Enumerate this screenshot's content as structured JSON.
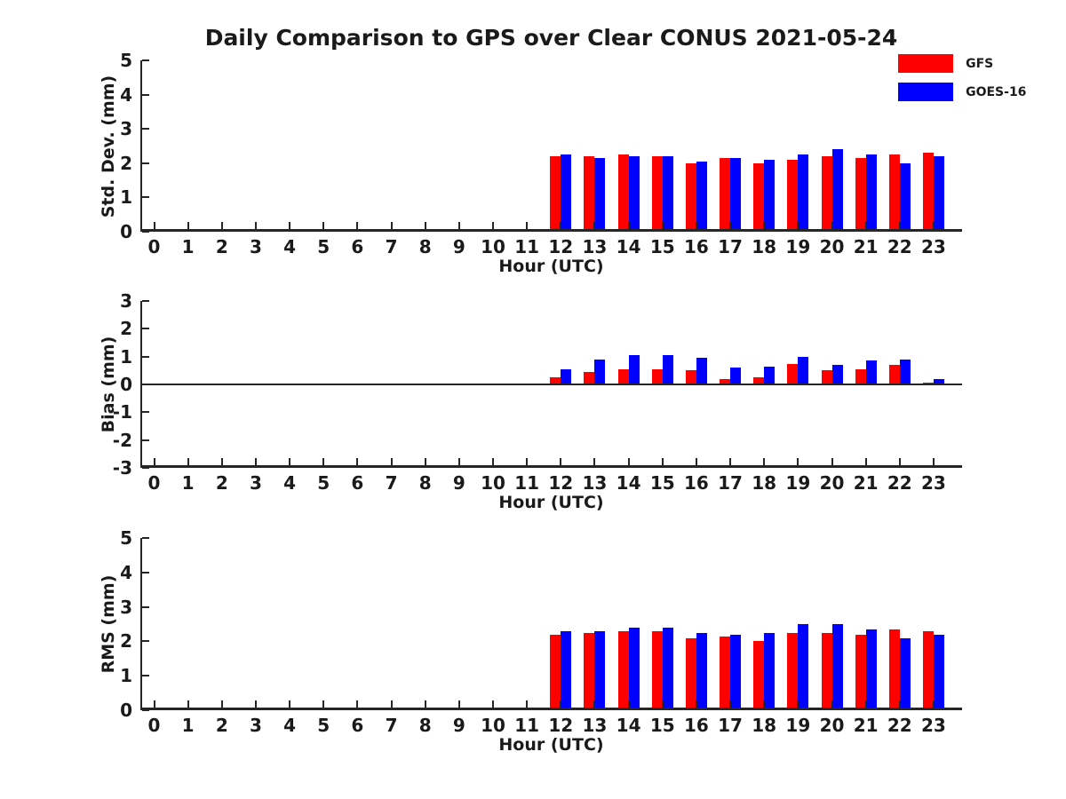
{
  "title": "Daily Comparison to GPS over Clear CONUS 2021-05-24",
  "colors": {
    "gfs": "#ff0000",
    "goes16": "#0000ff",
    "axis": "#262626",
    "text": "#1a1a1a"
  },
  "legend": {
    "position": "top-right",
    "items": [
      {
        "label": "GFS",
        "color": "#ff0000"
      },
      {
        "label": "GOES-16",
        "color": "#0000ff"
      }
    ]
  },
  "chart_data": [
    {
      "type": "bar",
      "ylabel": "Std. Dev. (mm)",
      "xlabel": "Hour (UTC)",
      "ylim": [
        0,
        5
      ],
      "yticks": [
        0,
        1,
        2,
        3,
        4,
        5
      ],
      "grid": false,
      "categories": [
        "0",
        "1",
        "2",
        "3",
        "4",
        "5",
        "6",
        "7",
        "8",
        "9",
        "10",
        "11",
        "12",
        "13",
        "14",
        "15",
        "16",
        "17",
        "18",
        "19",
        "20",
        "21",
        "22",
        "23"
      ],
      "series": [
        {
          "name": "GFS",
          "color": "#ff0000",
          "values": [
            null,
            null,
            null,
            null,
            null,
            null,
            null,
            null,
            null,
            null,
            null,
            null,
            2.2,
            2.2,
            2.25,
            2.2,
            2.0,
            2.15,
            2.0,
            2.1,
            2.2,
            2.15,
            2.25,
            2.3
          ]
        },
        {
          "name": "GOES-16",
          "color": "#0000ff",
          "values": [
            null,
            null,
            null,
            null,
            null,
            null,
            null,
            null,
            null,
            null,
            null,
            null,
            2.25,
            2.15,
            2.2,
            2.2,
            2.05,
            2.15,
            2.1,
            2.25,
            2.4,
            2.25,
            2.0,
            2.2
          ]
        }
      ]
    },
    {
      "type": "bar",
      "ylabel": "Bias (mm)",
      "xlabel": "Hour (UTC)",
      "ylim": [
        -3,
        3
      ],
      "yticks": [
        3,
        2,
        1,
        0,
        -1,
        -2,
        -3
      ],
      "grid": false,
      "zero_line": true,
      "categories": [
        "0",
        "1",
        "2",
        "3",
        "4",
        "5",
        "6",
        "7",
        "8",
        "9",
        "10",
        "11",
        "12",
        "13",
        "14",
        "15",
        "16",
        "17",
        "18",
        "19",
        "20",
        "21",
        "22",
        "23"
      ],
      "series": [
        {
          "name": "GFS",
          "color": "#ff0000",
          "values": [
            null,
            null,
            null,
            null,
            null,
            null,
            null,
            null,
            null,
            null,
            null,
            null,
            0.25,
            0.45,
            0.55,
            0.55,
            0.5,
            0.2,
            0.25,
            0.75,
            0.5,
            0.55,
            0.7,
            0.05
          ]
        },
        {
          "name": "GOES-16",
          "color": "#0000ff",
          "values": [
            null,
            null,
            null,
            null,
            null,
            null,
            null,
            null,
            null,
            null,
            null,
            null,
            0.55,
            0.9,
            1.05,
            1.05,
            0.95,
            0.6,
            0.65,
            1.0,
            0.7,
            0.85,
            0.9,
            0.2
          ]
        }
      ]
    },
    {
      "type": "bar",
      "ylabel": "RMS (mm)",
      "xlabel": "Hour (UTC)",
      "ylim": [
        0,
        5
      ],
      "yticks": [
        0,
        1,
        2,
        3,
        4,
        5
      ],
      "grid": false,
      "categories": [
        "0",
        "1",
        "2",
        "3",
        "4",
        "5",
        "6",
        "7",
        "8",
        "9",
        "10",
        "11",
        "12",
        "13",
        "14",
        "15",
        "16",
        "17",
        "18",
        "19",
        "20",
        "21",
        "22",
        "23"
      ],
      "series": [
        {
          "name": "GFS",
          "color": "#ff0000",
          "values": [
            null,
            null,
            null,
            null,
            null,
            null,
            null,
            null,
            null,
            null,
            null,
            null,
            2.2,
            2.25,
            2.3,
            2.3,
            2.1,
            2.15,
            2.0,
            2.25,
            2.25,
            2.2,
            2.35,
            2.3
          ]
        },
        {
          "name": "GOES-16",
          "color": "#0000ff",
          "values": [
            null,
            null,
            null,
            null,
            null,
            null,
            null,
            null,
            null,
            null,
            null,
            null,
            2.3,
            2.3,
            2.4,
            2.4,
            2.25,
            2.2,
            2.25,
            2.5,
            2.5,
            2.35,
            2.1,
            2.2
          ]
        }
      ]
    }
  ]
}
